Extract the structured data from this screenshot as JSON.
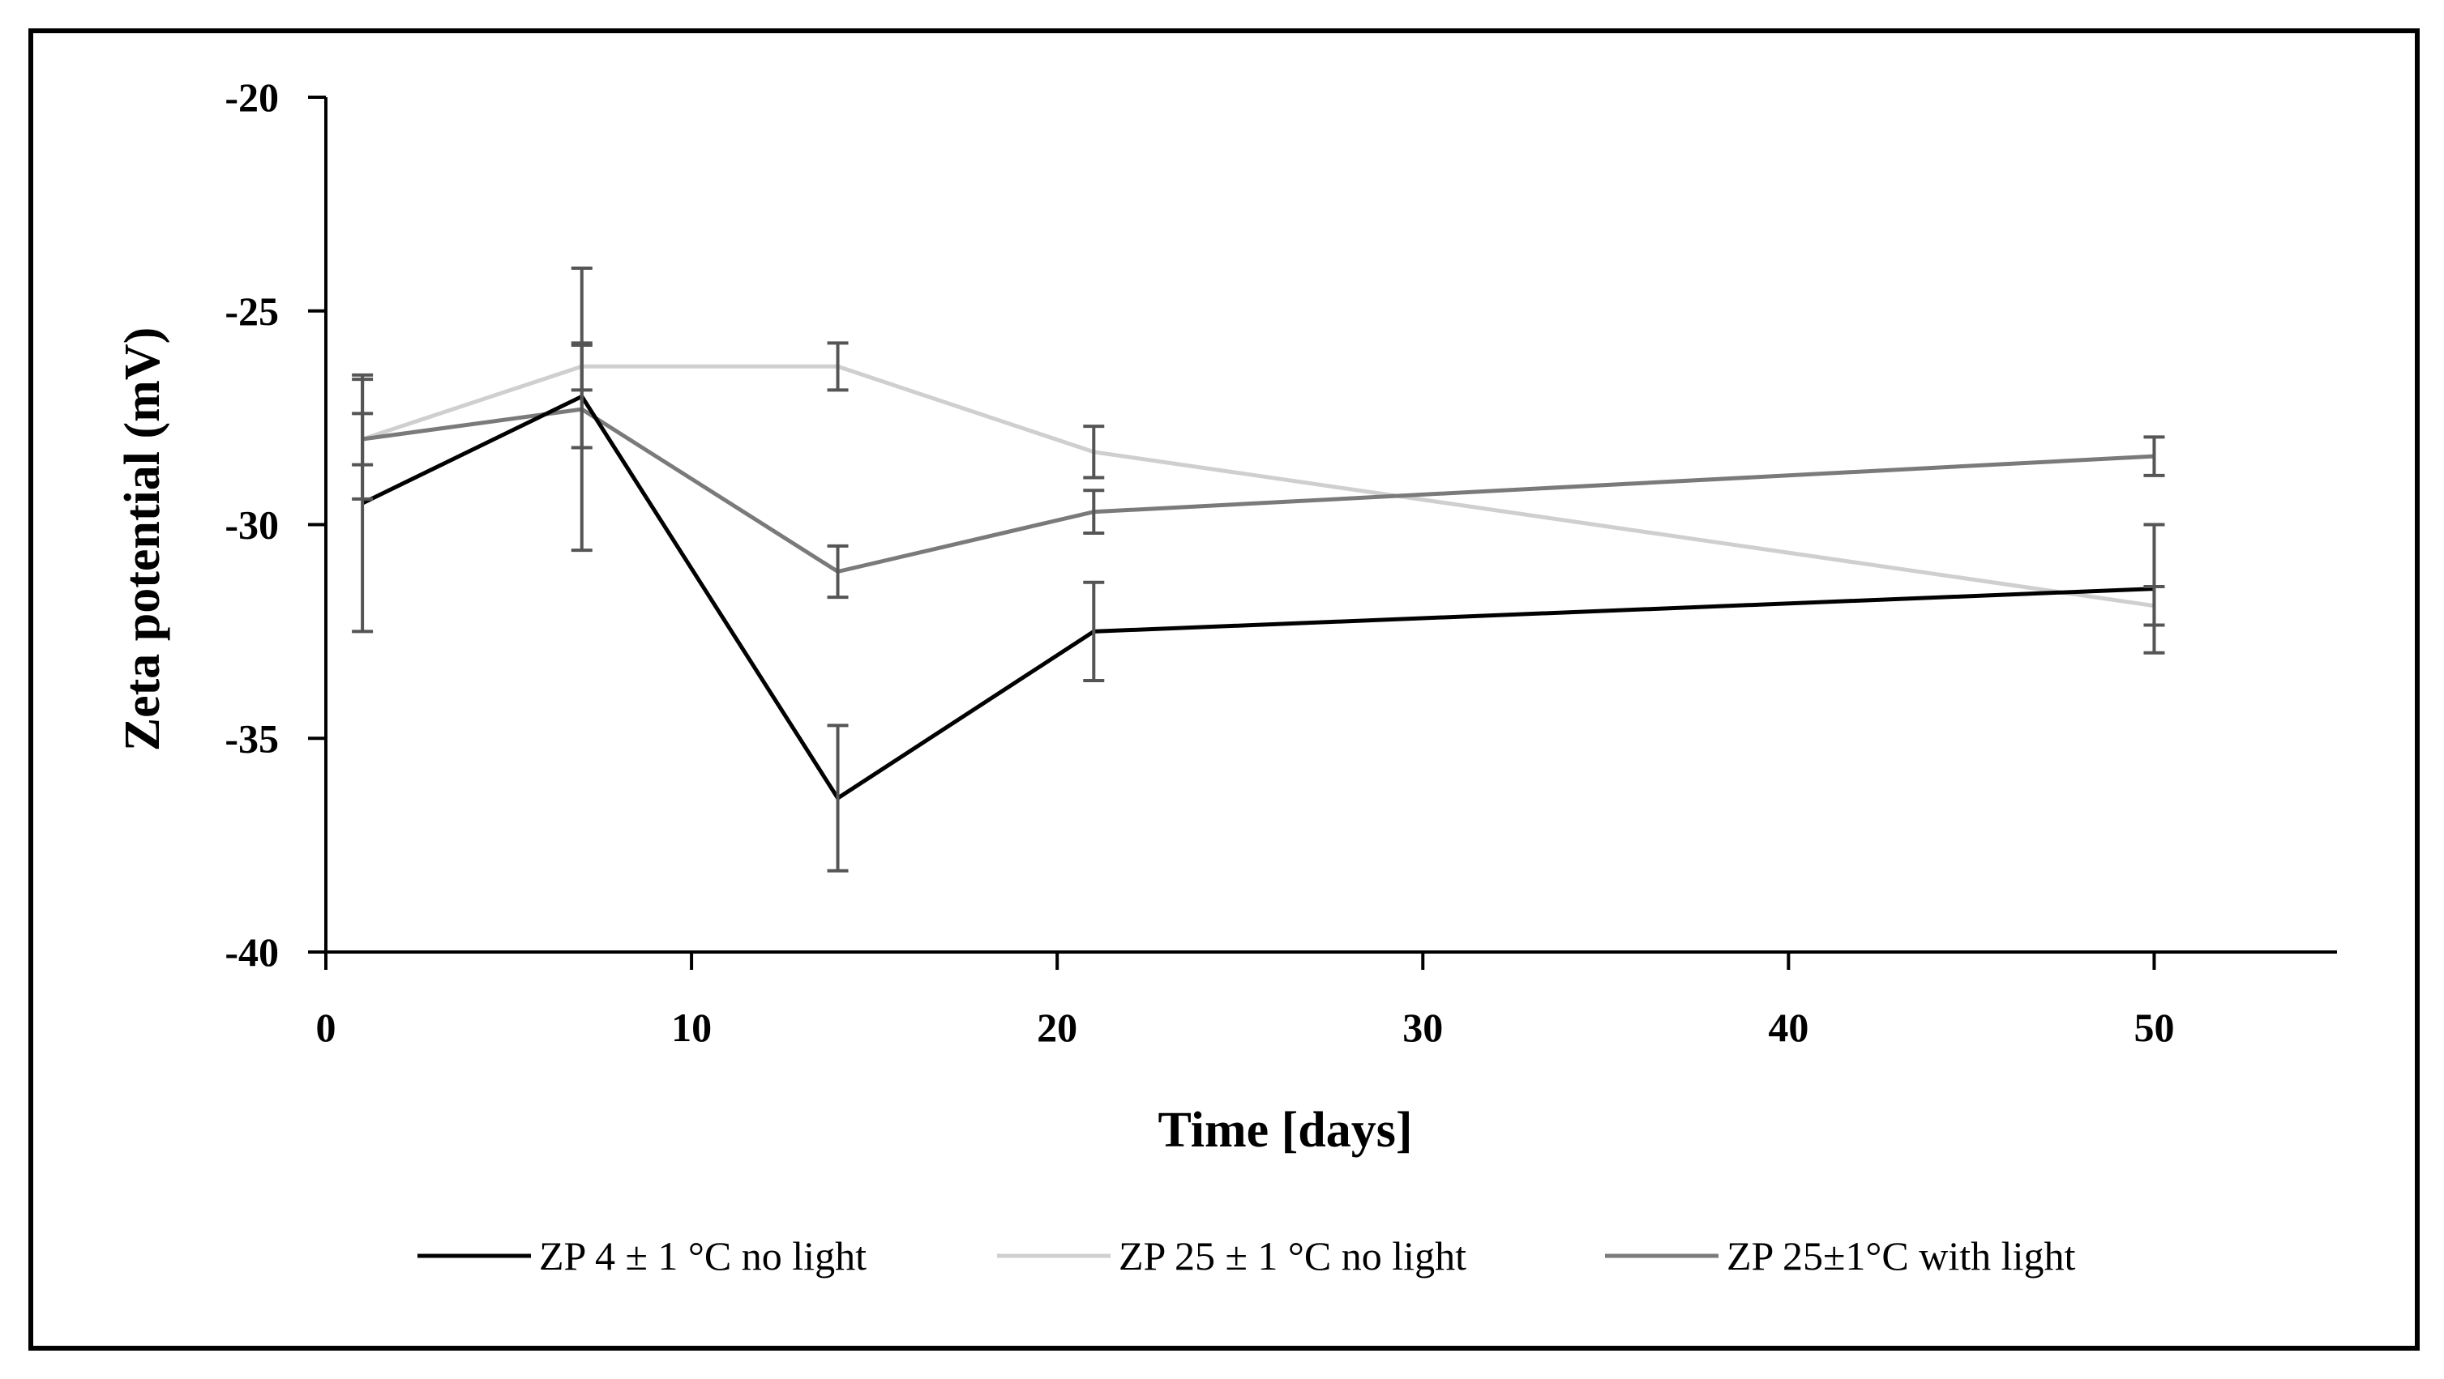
{
  "chart_data": {
    "type": "line",
    "title": "",
    "xlabel": "Time [days]",
    "ylabel": "Zeta potential (mV)",
    "xlim": [
      0,
      55
    ],
    "ylim": [
      -40,
      -20
    ],
    "xticks": [
      0,
      10,
      20,
      30,
      40,
      50
    ],
    "yticks": [
      -20,
      -25,
      -30,
      -35,
      -40
    ],
    "x": [
      1,
      7,
      14,
      21,
      50
    ],
    "series": [
      {
        "name": "ZP 4 ± 1 °C no light",
        "color": "#000000",
        "values": [
          -29.5,
          -27.0,
          -36.4,
          -32.5,
          -31.5
        ],
        "errors": [
          3.0,
          1.2,
          1.7,
          1.15,
          1.5
        ]
      },
      {
        "name": "ZP 25 ± 1 °C no light",
        "color": "#cfcfcf",
        "values": [
          -28.0,
          -26.3,
          -26.3,
          -28.3,
          -31.9
        ],
        "errors": [
          1.4,
          0.55,
          0.55,
          0.6,
          0.45
        ]
      },
      {
        "name": "ZP 25±1°C with light",
        "color": "#7a7a7a",
        "values": [
          -28.0,
          -27.3,
          -31.1,
          -29.7,
          -28.4
        ],
        "errors": [
          0.6,
          3.3,
          0.6,
          0.5,
          0.45
        ]
      }
    ],
    "error_bar_color": "#555555",
    "legend_position": "bottom",
    "grid": false
  }
}
